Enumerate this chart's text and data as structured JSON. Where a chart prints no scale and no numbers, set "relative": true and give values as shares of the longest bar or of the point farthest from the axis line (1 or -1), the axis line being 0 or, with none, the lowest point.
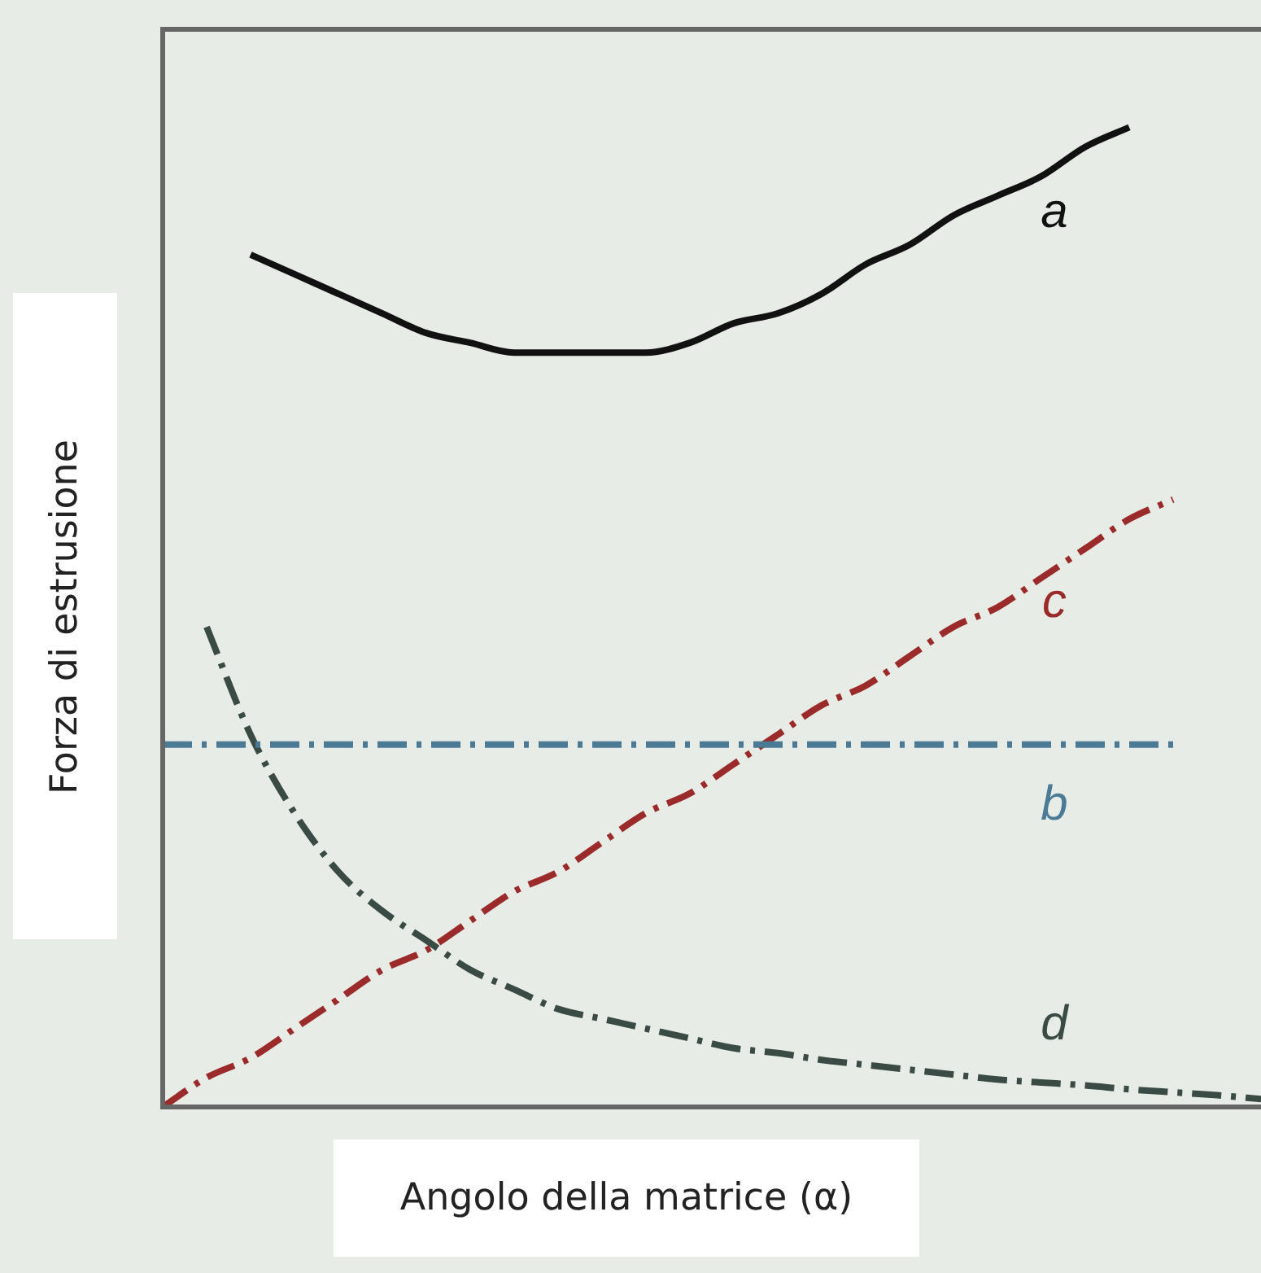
{
  "chart_data": {
    "type": "line",
    "xlabel": "Angolo della matrice (α)",
    "ylabel": "Forza di estrusione",
    "relative": true,
    "legend": false,
    "marker": "none",
    "categories": [
      null,
      null,
      null,
      null,
      null,
      null,
      null,
      null,
      null,
      null,
      null,
      null,
      null,
      null,
      null,
      null,
      null,
      null,
      null,
      null,
      null,
      null,
      null,
      null,
      null,
      null
    ],
    "series": [
      {
        "name": "a",
        "color": "#111111",
        "line_style": "solid",
        "values": [
          null,
          null,
          0.87,
          0.85,
          0.83,
          0.81,
          0.79,
          0.78,
          0.77,
          0.77,
          0.77,
          0.77,
          0.78,
          0.8,
          0.81,
          0.83,
          0.86,
          0.88,
          0.91,
          0.93,
          0.95,
          0.98,
          1.0,
          null,
          null,
          null
        ]
      },
      {
        "name": "b",
        "color": "#4a7a96",
        "line_style": "dashed",
        "values": [
          0.37,
          0.37,
          0.37,
          0.37,
          0.37,
          0.37,
          0.37,
          0.37,
          0.37,
          0.37,
          0.37,
          0.37,
          0.37,
          0.37,
          0.37,
          0.37,
          0.37,
          0.37,
          0.37,
          0.37,
          0.37,
          0.37,
          0.37,
          0.37,
          null,
          null
        ]
      },
      {
        "name": "c",
        "color": "#9b2a2a",
        "line_style": "dashed",
        "values": [
          0,
          0.03,
          0.05,
          0.08,
          0.11,
          0.14,
          0.16,
          0.19,
          0.22,
          0.24,
          0.27,
          0.3,
          0.32,
          0.35,
          0.38,
          0.41,
          0.43,
          0.46,
          0.49,
          0.51,
          0.54,
          0.57,
          0.6,
          0.62,
          null,
          null
        ]
      },
      {
        "name": "d",
        "color": "#3a4a44",
        "line_style": "dashed",
        "values": [
          null,
          0.49,
          0.38,
          0.3,
          0.24,
          0.2,
          0.17,
          0.14,
          0.12,
          0.1,
          0.09,
          0.08,
          0.07,
          0.06,
          0.055,
          0.048,
          0.043,
          0.038,
          0.033,
          0.028,
          0.025,
          0.022,
          0.018,
          0.015,
          0.012,
          0.008
        ]
      }
    ]
  }
}
